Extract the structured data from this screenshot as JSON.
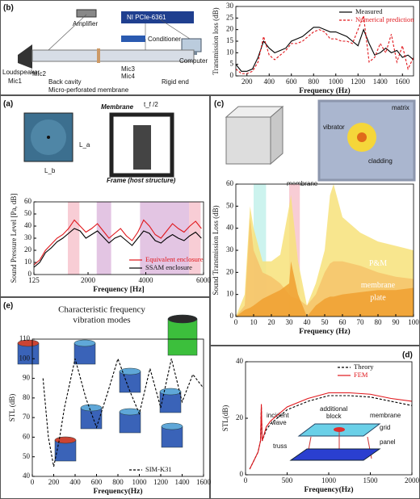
{
  "chart_data": [
    {
      "panel": "(b)",
      "type": "line",
      "xlabel": "Frequency (Hz)",
      "ylabel": "Transmission loss (dB)",
      "x": [
        100,
        150,
        200,
        250,
        300,
        350,
        400,
        450,
        500,
        550,
        600,
        650,
        700,
        750,
        800,
        850,
        900,
        950,
        1000,
        1050,
        1100,
        1150,
        1200,
        1250,
        1300,
        1350,
        1400,
        1450,
        1500,
        1550,
        1600,
        1650,
        1700
      ],
      "series": [
        {
          "name": "Measured",
          "color": "#000000",
          "dash": false,
          "values": [
            5,
            2,
            2,
            3,
            8,
            15,
            12,
            10,
            11,
            12,
            15,
            16,
            17,
            19,
            21,
            21,
            20,
            19,
            19,
            18,
            17,
            15,
            13,
            20,
            14,
            9,
            10,
            12,
            10,
            11,
            8,
            9,
            7
          ]
        },
        {
          "name": "Numerical prediction",
          "color": "#e0161b",
          "dash": true,
          "values": [
            3,
            1,
            1,
            2,
            6,
            17,
            9,
            7,
            9,
            11,
            14,
            14,
            15,
            17,
            19,
            20,
            19,
            16,
            16,
            15,
            15,
            14,
            20,
            26,
            6,
            8,
            14,
            10,
            18,
            6,
            13,
            3,
            8
          ]
        }
      ],
      "xlim": [
        100,
        1700
      ],
      "ylim": [
        0,
        30
      ],
      "xticks": [
        200,
        400,
        600,
        800,
        1000,
        1200,
        1400,
        1600
      ],
      "yticks": [
        0,
        5,
        10,
        15,
        20,
        25,
        30
      ],
      "legend": "upper right"
    },
    {
      "panel": "(a)",
      "type": "line",
      "xlabel": "Frequency [Hz]",
      "ylabel": "Sound Pressure Level [Pa, dB]",
      "x": [
        125,
        325,
        525,
        725,
        925,
        1125,
        1325,
        1525,
        1725,
        1925,
        2125,
        2325,
        2525,
        2725,
        2925,
        3125,
        3325,
        3525,
        3725,
        3925,
        4125,
        4325,
        4525,
        4725,
        4925,
        5125,
        5325,
        5525,
        5725,
        5925
      ],
      "series": [
        {
          "name": "Equivalent enclosure",
          "color": "#e0161b",
          "dash": false,
          "values": [
            8,
            12,
            20,
            25,
            30,
            33,
            38,
            45,
            40,
            35,
            38,
            42,
            36,
            30,
            34,
            38,
            32,
            28,
            35,
            45,
            40,
            33,
            30,
            36,
            42,
            38,
            35,
            40,
            44,
            38
          ]
        },
        {
          "name": "SSAM enclosure",
          "color": "#000000",
          "dash": false,
          "values": [
            6,
            10,
            18,
            22,
            27,
            30,
            34,
            38,
            36,
            30,
            33,
            36,
            31,
            26,
            30,
            32,
            28,
            24,
            30,
            36,
            34,
            28,
            26,
            30,
            33,
            30,
            28,
            32,
            35,
            30
          ]
        }
      ],
      "bands": [
        {
          "range": [
            1300,
            1700
          ],
          "color": "#f6c1cb"
        },
        {
          "range": [
            2300,
            2800
          ],
          "color": "#dcb6dc"
        },
        {
          "range": [
            3800,
            5500
          ],
          "color": "#dcb6dc"
        },
        {
          "range": [
            5500,
            5900
          ],
          "color": "#f6c1cb"
        }
      ],
      "xlim": [
        125,
        6000
      ],
      "ylim": [
        0,
        60
      ],
      "xticks": [
        125,
        2000,
        4000,
        6000
      ],
      "yticks": [
        0,
        10,
        20,
        30,
        40,
        50,
        60
      ],
      "legend": "lower right"
    },
    {
      "panel": "(c)",
      "type": "area",
      "xlabel": "Frequency (Hz)",
      "ylabel": "Sound Transmission Loss (dB)",
      "x": [
        0,
        5,
        8,
        10,
        15,
        20,
        25,
        30,
        31,
        35,
        40,
        45,
        50,
        53,
        55,
        60,
        70,
        80,
        90,
        100
      ],
      "series": [
        {
          "name": "P&M",
          "color": "#f7e27a",
          "values": [
            0,
            10,
            50,
            40,
            25,
            25,
            28,
            50,
            55,
            25,
            5,
            15,
            30,
            55,
            60,
            45,
            38,
            34,
            32,
            30
          ]
        },
        {
          "name": "membrane",
          "color": "#f6c36b",
          "values": [
            0,
            5,
            45,
            30,
            20,
            18,
            15,
            10,
            9,
            8,
            5,
            10,
            20,
            24,
            25,
            25,
            23,
            20,
            18,
            17
          ]
        },
        {
          "name": "plate",
          "color": "#f0a030",
          "values": [
            0,
            3,
            4,
            5,
            8,
            10,
            12,
            15,
            25,
            10,
            0,
            5,
            8,
            9,
            9,
            10,
            11,
            12,
            12,
            13
          ]
        }
      ],
      "bands": [
        {
          "range": [
            10,
            17
          ],
          "color": "#bff0ea"
        },
        {
          "range": [
            30,
            36
          ],
          "color": "#f6c1cb"
        }
      ],
      "xlim": [
        0,
        100
      ],
      "ylim": [
        0,
        60
      ],
      "xticks": [
        0,
        10,
        20,
        30,
        40,
        50,
        60,
        70,
        80,
        90,
        100
      ],
      "yticks": [
        0,
        10,
        20,
        30,
        40,
        50,
        60
      ],
      "legend": "inside"
    },
    {
      "panel": "(e)",
      "type": "line",
      "title": [
        "Characteristic frequency",
        "vibration modes"
      ],
      "xlabel": "Frequency(Hz)",
      "ylabel": "STL (dB)",
      "x": [
        100,
        150,
        200,
        250,
        300,
        400,
        500,
        600,
        700,
        800,
        900,
        1000,
        1100,
        1200,
        1300,
        1400,
        1500,
        1600
      ],
      "series": [
        {
          "name": "SIM-K31",
          "color": "#000000",
          "dash": true,
          "values": [
            90,
            60,
            45,
            58,
            75,
            100,
            80,
            65,
            82,
            100,
            85,
            72,
            95,
            75,
            100,
            78,
            92,
            85
          ]
        }
      ],
      "xlim": [
        0,
        1600
      ],
      "ylim": [
        40,
        110
      ],
      "xticks": [
        0,
        200,
        400,
        600,
        800,
        1000,
        1200,
        1400,
        1600
      ],
      "yticks": [
        40,
        50,
        60,
        70,
        80,
        90,
        100,
        110
      ],
      "legend": "lower right"
    },
    {
      "panel": "(d)",
      "type": "line",
      "xlabel": "Frequency(Hz)",
      "ylabel": "STL(dB)",
      "x": [
        50,
        100,
        150,
        180,
        190,
        200,
        250,
        300,
        500,
        750,
        1000,
        1250,
        1500,
        1750,
        2000
      ],
      "series": [
        {
          "name": "Theory",
          "color": "#000000",
          "dash": true,
          "values": [
            2,
            5,
            8,
            12,
            24,
            12,
            16,
            18,
            23,
            26,
            28,
            28,
            27.5,
            26,
            24.5
          ]
        },
        {
          "name": "FEM",
          "color": "#e0161b",
          "dash": false,
          "values": [
            2,
            5,
            8,
            12,
            25,
            12,
            17,
            19,
            24,
            27,
            29,
            29,
            28.5,
            27,
            26
          ]
        }
      ],
      "xlim": [
        0,
        2000
      ],
      "ylim": [
        0,
        40
      ],
      "xticks": [
        0,
        500,
        1000,
        1500,
        2000
      ],
      "yticks": [
        0,
        20,
        40
      ],
      "legend": "upper right"
    }
  ],
  "diagrams": {
    "b": [
      "Amplifier",
      "NI PCIe-6361",
      "Conditioner",
      "Loudspeaker",
      "Mic1",
      "Mic2",
      "Back cavity",
      "Mic3",
      "Mic4",
      "Computer",
      "Micro-perforated membrane",
      "Rigid end"
    ],
    "a": [
      "Membrane",
      "Frame (host structure)",
      "L_a",
      "L_b",
      "t_f /2"
    ],
    "c": [
      "vibrator",
      "cladding",
      "matrix",
      "membrane"
    ],
    "d": [
      "incident",
      "wave",
      "additional",
      "block",
      "membrane",
      "grid",
      "truss",
      "panel"
    ]
  }
}
